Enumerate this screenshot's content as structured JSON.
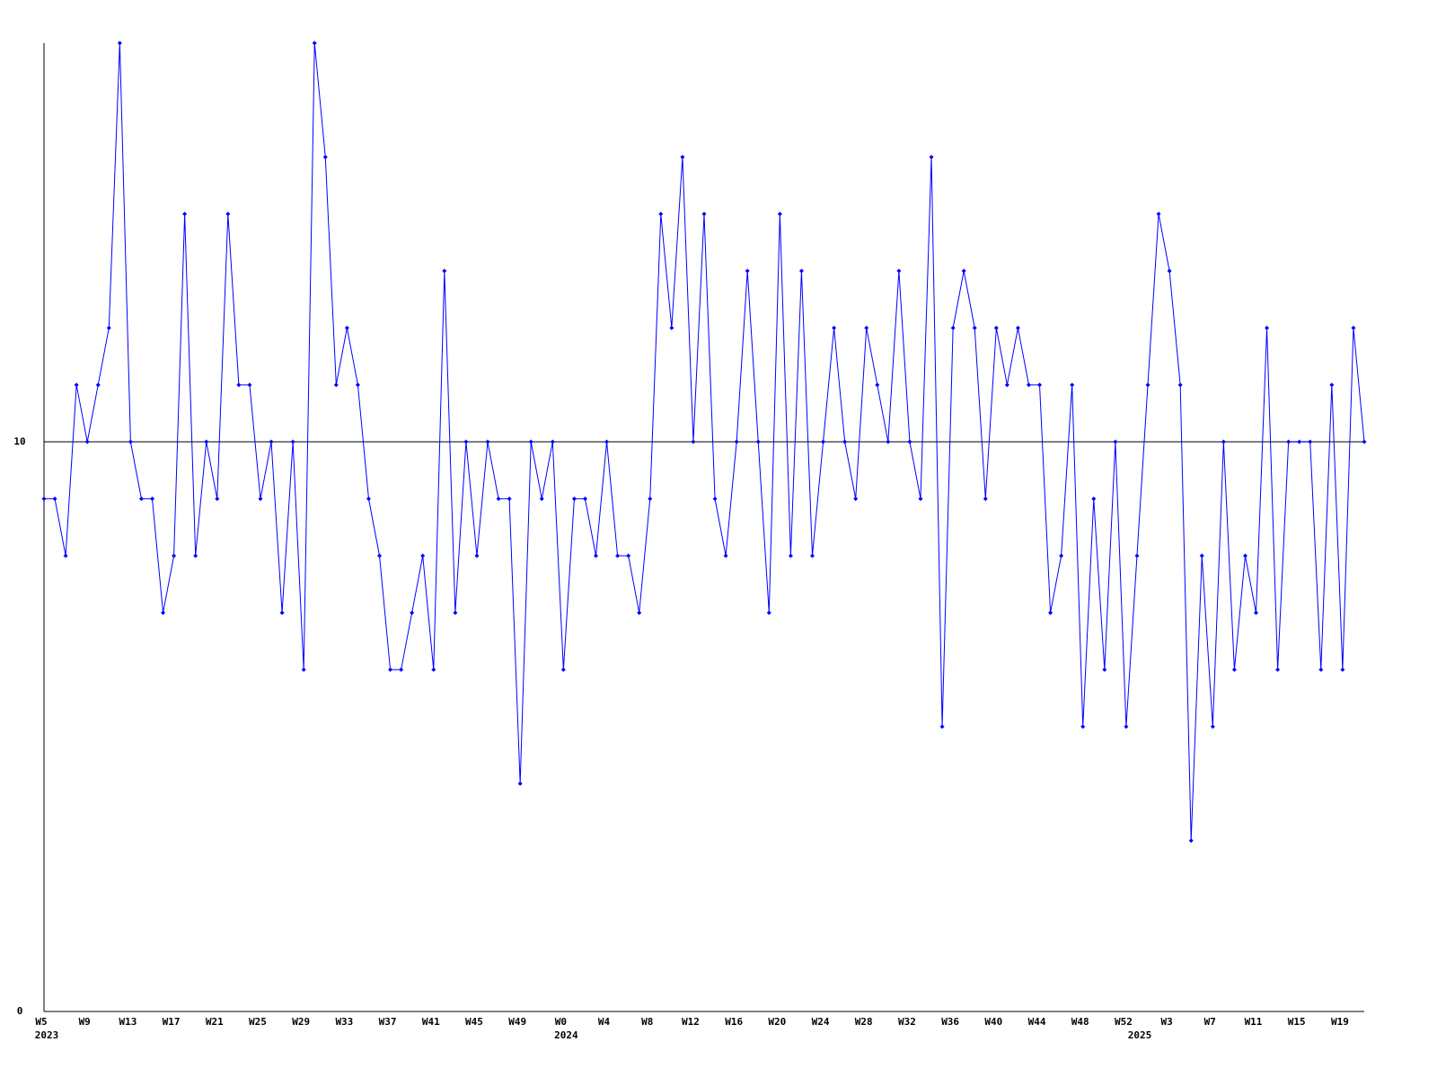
{
  "chart_data": {
    "type": "line",
    "categories": [
      "W5",
      null,
      null,
      null,
      "W9",
      null,
      null,
      null,
      "W13",
      null,
      null,
      null,
      "W17",
      null,
      null,
      null,
      "W21",
      null,
      null,
      null,
      "W25",
      null,
      null,
      null,
      "W29",
      null,
      null,
      null,
      "W33",
      null,
      null,
      null,
      "W37",
      null,
      null,
      null,
      "W41",
      null,
      null,
      null,
      "W45",
      null,
      null,
      null,
      "W49",
      null,
      null,
      null,
      "W0",
      null,
      null,
      null,
      "W4",
      null,
      null,
      null,
      "W8",
      null,
      null,
      null,
      "W12",
      null,
      null,
      null,
      "W16",
      null,
      null,
      null,
      "W20",
      null,
      null,
      null,
      "W24",
      null,
      null,
      null,
      "W28",
      null,
      null,
      null,
      "W32",
      null,
      null,
      null,
      "W36",
      null,
      null,
      null,
      "W40",
      null,
      null,
      null,
      "W44",
      null,
      null,
      null,
      "W48",
      null,
      null,
      null,
      "W52",
      null,
      null,
      null,
      "W3",
      null,
      null,
      null,
      "W7",
      null,
      null,
      null,
      "W11",
      null,
      null,
      null,
      "W15",
      null,
      null,
      null,
      "W19",
      null,
      null
    ],
    "x_sublabels": [
      "2023",
      null,
      null,
      null,
      null,
      null,
      null,
      null,
      null,
      null,
      null,
      null,
      null,
      null,
      null,
      null,
      null,
      null,
      null,
      null,
      null,
      null,
      null,
      null,
      null,
      null,
      null,
      null,
      null,
      null,
      null,
      null,
      null,
      null,
      null,
      null,
      null,
      null,
      null,
      null,
      null,
      null,
      null,
      null,
      null,
      null,
      null,
      null,
      "2024",
      null,
      null,
      null,
      null,
      null,
      null,
      null,
      null,
      null,
      null,
      null,
      null,
      null,
      null,
      null,
      null,
      null,
      null,
      null,
      null,
      null,
      null,
      null,
      null,
      null,
      null,
      null,
      null,
      null,
      null,
      null,
      null,
      null,
      null,
      null,
      null,
      null,
      null,
      null,
      null,
      null,
      null,
      null,
      null,
      null,
      null,
      null,
      null,
      null,
      null,
      null,
      null,
      "2025",
      null,
      null,
      null,
      null,
      null,
      null,
      null,
      null,
      null,
      null,
      null,
      null,
      null,
      null,
      null,
      null,
      null,
      null,
      null,
      null,
      null
    ],
    "series": [
      {
        "color": "#0000ff",
        "values": [
          9,
          9,
          8,
          11,
          10,
          11,
          12,
          17,
          10,
          9,
          9,
          7,
          8,
          14,
          8,
          10,
          9,
          14,
          11,
          11,
          9,
          10,
          7,
          10,
          6,
          17,
          15,
          11,
          12,
          11,
          9,
          8,
          6,
          6,
          7,
          8,
          6,
          13,
          7,
          10,
          8,
          10,
          9,
          9,
          4,
          10,
          9,
          10,
          6,
          9,
          9,
          8,
          10,
          8,
          8,
          7,
          9,
          14,
          12,
          15,
          10,
          14,
          9,
          8,
          10,
          13,
          10,
          7,
          14,
          8,
          13,
          8,
          10,
          12,
          10,
          9,
          12,
          11,
          10,
          13,
          10,
          9,
          15,
          5,
          12,
          13,
          12,
          9,
          12,
          11,
          12,
          11,
          11,
          7,
          8,
          11,
          5,
          9,
          6,
          10,
          5,
          8,
          11,
          14,
          13,
          11,
          3,
          8,
          5,
          10,
          6,
          8,
          7,
          12,
          6,
          10,
          10,
          10,
          6,
          11,
          6,
          12,
          10
        ]
      }
    ],
    "ylim": [
      0,
      17
    ],
    "yticks": [
      0,
      10
    ],
    "grid": true
  }
}
